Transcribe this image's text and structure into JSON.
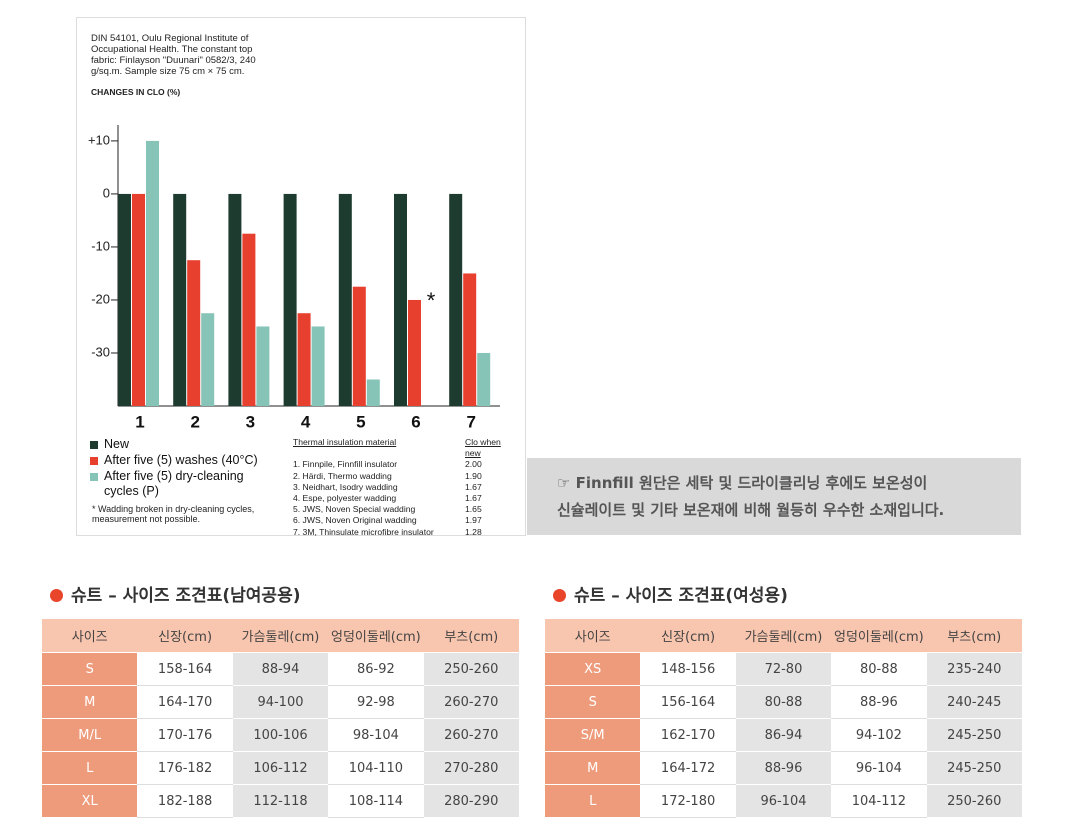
{
  "chart_data": {
    "type": "bar",
    "source_note": "DIN 54101, Oulu Regional Institute of Occupational Health. The constant top fabric: Finlayson \"Duunari\" 0582/3, 240 g/sq.m. Sample size 75 cm × 75 cm.",
    "y_label": "CHANGES IN CLO (%)",
    "categories": [
      "1",
      "2",
      "3",
      "4",
      "5",
      "6",
      "7"
    ],
    "series": [
      {
        "name": "New",
        "color": "#1d3b2f",
        "values": [
          0,
          0,
          0,
          0,
          0,
          0,
          0
        ]
      },
      {
        "name": "After five (5) washes (40°C)",
        "color": "#e8402e",
        "values": [
          0,
          -12.5,
          -7.5,
          -22.5,
          -17.5,
          -20,
          -15
        ]
      },
      {
        "name": "After five (5) dry-cleaning cycles (P)",
        "color": "#86c4b8",
        "values": [
          10,
          -22.5,
          -25,
          -25,
          -35,
          null,
          -30
        ]
      }
    ],
    "ylim": [
      -40,
      13
    ],
    "yticks": [
      {
        "value": 10,
        "label": "+10"
      },
      0,
      -10,
      -20,
      -30
    ],
    "grid": false,
    "annotation": "*",
    "footnote": "* Wadding broken in dry-cleaning cycles, measurement not possible.",
    "material_table": {
      "headers": [
        "Thermal insulation material",
        "Clo when new"
      ],
      "rows": [
        [
          "1. Finnpile, Finnfill insulator",
          "2.00"
        ],
        [
          "2. Härdi, Thermo wadding",
          "1.90"
        ],
        [
          "3. Neidhart, Isodry wadding",
          "1.67"
        ],
        [
          "4. Espe, polyester wadding",
          "1.67"
        ],
        [
          "5. JWS, Noven Special wadding",
          "1.65"
        ],
        [
          "6. JWS, Noven Original wadding",
          "1.97"
        ],
        [
          "7. 3M, Thinsulate microfibre insulator",
          "1.28"
        ]
      ]
    }
  },
  "note": {
    "lines": [
      "☞ Finnfill  원단은 세탁 및 드라이클리닝 후에도 보온성이",
      "신슐레이트 및 기타 보온재에 비해 월등히 우수한 소재입니다."
    ]
  },
  "tables": [
    {
      "title": "슈트 – 사이즈 조견표(남여공용)",
      "headers": [
        "사이즈",
        "신장(cm)",
        "가슴둘레(cm)",
        "엉덩이둘레(cm)",
        "부츠(cm)"
      ],
      "rows": [
        [
          "S",
          "158-164",
          "88-94",
          "86-92",
          "250-260"
        ],
        [
          "M",
          "164-170",
          "94-100",
          "92-98",
          "260-270"
        ],
        [
          "M/L",
          "170-176",
          "100-106",
          "98-104",
          "260-270"
        ],
        [
          "L",
          "176-182",
          "106-112",
          "104-110",
          "270-280"
        ],
        [
          "XL",
          "182-188",
          "112-118",
          "108-114",
          "280-290"
        ]
      ]
    },
    {
      "title": "슈트 – 사이즈 조견표(여성용)",
      "headers": [
        "사이즈",
        "신장(cm)",
        "가슴둘레(cm)",
        "엉덩이둘레(cm)",
        "부츠(cm)"
      ],
      "rows": [
        [
          "XS",
          "148-156",
          "72-80",
          "80-88",
          "235-240"
        ],
        [
          "S",
          "156-164",
          "80-88",
          "88-96",
          "240-245"
        ],
        [
          "S/M",
          "162-170",
          "86-94",
          "94-102",
          "245-250"
        ],
        [
          "M",
          "164-172",
          "88-96",
          "96-104",
          "245-250"
        ],
        [
          "L",
          "172-180",
          "96-104",
          "104-112",
          "250-260"
        ]
      ]
    }
  ]
}
